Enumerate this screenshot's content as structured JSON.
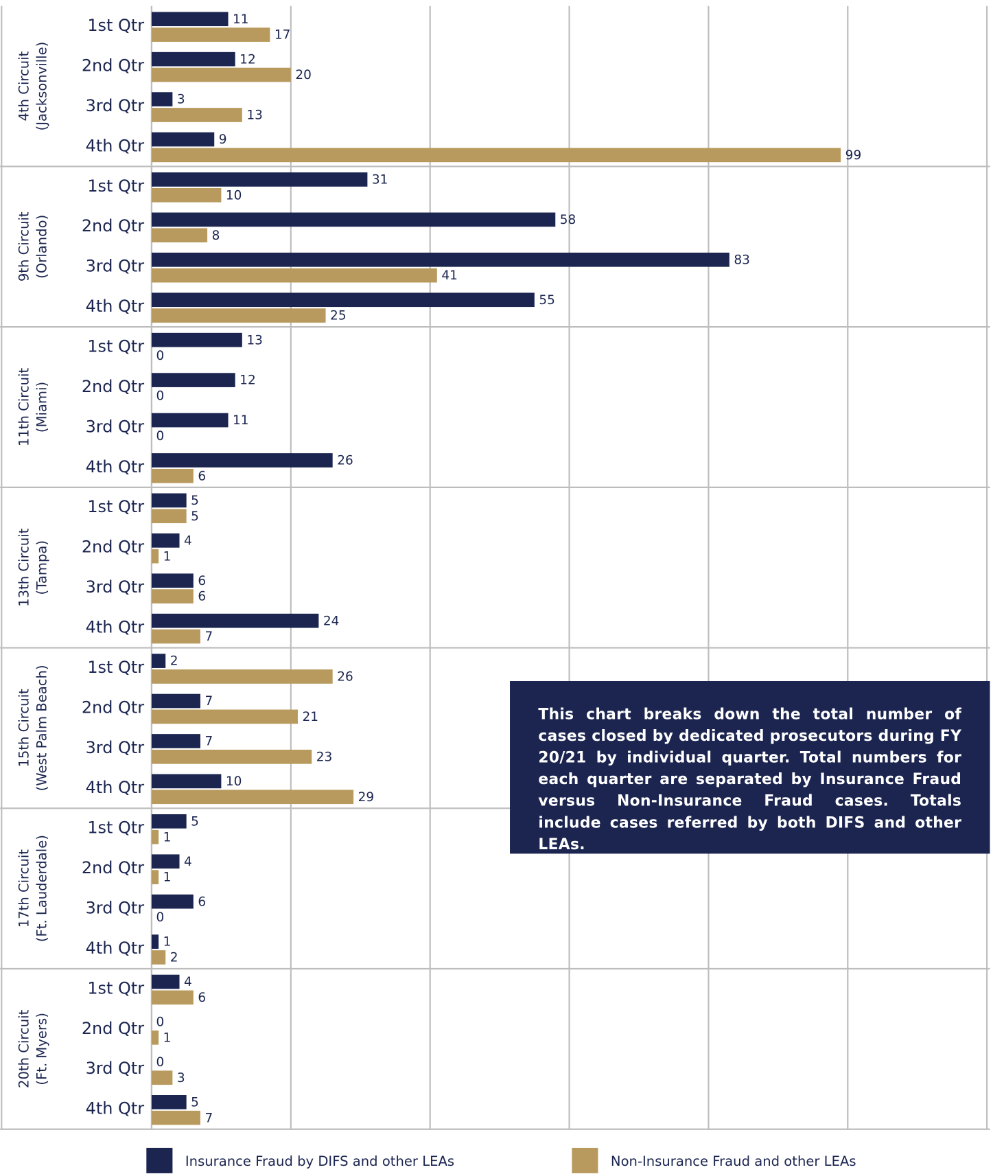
{
  "chart_data": {
    "type": "grouped_horizontal_bar",
    "group_labels": [
      [
        "4th Circuit",
        "(Jacksonville)"
      ],
      [
        "9th Circuit",
        "(Orlando)"
      ],
      [
        "11th Circuit",
        "(Miami)"
      ],
      [
        "13th Circuit",
        "(Tampa)"
      ],
      [
        "15th Circuit",
        "(West Palm Beach)"
      ],
      [
        "17th Circuit",
        "(Ft. Lauderdale)"
      ],
      [
        "20th Circuit",
        "(Ft. Myers)"
      ]
    ],
    "categories": [
      "1st Qtr",
      "2nd Qtr",
      "3rd Qtr",
      "4th Qtr",
      "1st Qtr",
      "2nd Qtr",
      "3rd Qtr",
      "4th Qtr",
      "1st Qtr",
      "2nd Qtr",
      "3rd Qtr",
      "4th Qtr",
      "1st Qtr",
      "2nd Qtr",
      "3rd Qtr",
      "4th Qtr",
      "1st Qtr",
      "2nd Qtr",
      "3rd Qtr",
      "4th Qtr",
      "1st Qtr",
      "2nd Qtr",
      "3rd Qtr",
      "4th Qtr",
      "1st Qtr",
      "2nd Qtr",
      "3rd Qtr",
      "4th Qtr"
    ],
    "series": [
      {
        "name": "Insurance Fraud by DIFS and other LEAs",
        "color": "#1b2550",
        "values": [
          11,
          12,
          3,
          9,
          31,
          58,
          83,
          55,
          13,
          12,
          11,
          26,
          5,
          4,
          6,
          24,
          2,
          7,
          7,
          10,
          5,
          4,
          6,
          1,
          4,
          0,
          0,
          5
        ]
      },
      {
        "name": "Non-Insurance Fraud and other LEAs",
        "color": "#b89a5e",
        "values": [
          17,
          20,
          13,
          99,
          10,
          8,
          41,
          25,
          0,
          0,
          0,
          6,
          5,
          1,
          6,
          7,
          26,
          21,
          23,
          29,
          1,
          1,
          0,
          2,
          6,
          1,
          3,
          7
        ]
      }
    ],
    "xlim": [
      0,
      120
    ],
    "xticks": [
      0,
      20,
      40,
      60,
      80,
      100,
      120
    ],
    "grid": true,
    "annotation": "This chart breaks down the total number of cases closed by dedicated prosecutors during FY 20/21 by individual quarter. Total numbers for each quarter are separated by Insurance Fraud versus Non-Insurance Fraud cases. Totals include cases referred by both DIFS and other LEAs."
  }
}
